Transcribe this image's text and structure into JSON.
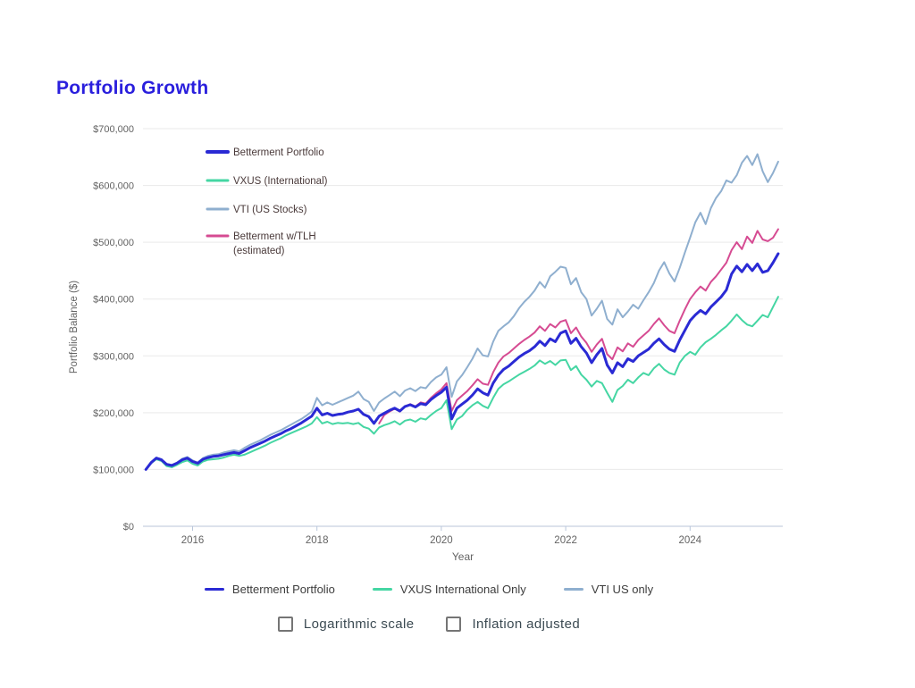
{
  "page": {
    "title": "Portfolio Growth",
    "title_color": "#2a1fdd"
  },
  "axes": {
    "y_title": "Portfolio Balance ($)",
    "x_title": "Year",
    "y_tick_labels": [
      "$0",
      "$100,000",
      "$200,000",
      "$300,000",
      "$400,000",
      "$500,000",
      "$600,000",
      "$700,000"
    ],
    "x_tick_labels": [
      "2016",
      "2018",
      "2020",
      "2022",
      "2024"
    ],
    "text_color": "#636363",
    "axis_line_color": "#b9c6da",
    "grid_color": "#e9e9e9"
  },
  "inchart_legend": {
    "text_color": "#4a3a3a",
    "items": [
      {
        "label_lines": [
          "Betterment Portfolio"
        ],
        "color": "#2a2ad4"
      },
      {
        "label_lines": [
          "VXUS (International)"
        ],
        "color": "#45d6a3"
      },
      {
        "label_lines": [
          "VTI (US Stocks)"
        ],
        "color": "#8fafcf"
      },
      {
        "label_lines": [
          "Betterment w/TLH",
          "(estimated)"
        ],
        "color": "#d64b92"
      }
    ]
  },
  "bottom_legend": {
    "items": [
      {
        "label": "Betterment Portfolio",
        "color": "#2a2ad4"
      },
      {
        "label": "VXUS International Only",
        "color": "#45d6a3"
      },
      {
        "label": "VTI US only",
        "color": "#8fafcf"
      }
    ]
  },
  "controls": {
    "checkboxes": [
      {
        "label": "Logarithmic scale",
        "checked": false
      },
      {
        "label": "Inflation adjusted",
        "checked": false
      }
    ]
  },
  "chart_data": {
    "type": "line",
    "title": "Portfolio Growth",
    "xlabel": "Year",
    "ylabel": "Portfolio Balance ($)",
    "x_unit": "decimal_year_monthly",
    "values_unit": "USD_thousands",
    "x_range": [
      2015.25,
      2025.417
    ],
    "ylim": [
      0,
      700000
    ],
    "x_ticks": [
      2016,
      2018,
      2020,
      2022,
      2024
    ],
    "y_ticks_k": [
      0,
      100,
      200,
      300,
      400,
      500,
      600,
      700
    ],
    "grid": "horizontal-only",
    "legend_position": "top-left-inset",
    "x": [
      2015.25,
      2015.333,
      2015.417,
      2015.5,
      2015.583,
      2015.667,
      2015.75,
      2015.833,
      2015.917,
      2016.0,
      2016.083,
      2016.167,
      2016.25,
      2016.333,
      2016.417,
      2016.5,
      2016.583,
      2016.667,
      2016.75,
      2016.833,
      2016.917,
      2017.0,
      2017.083,
      2017.167,
      2017.25,
      2017.333,
      2017.417,
      2017.5,
      2017.583,
      2017.667,
      2017.75,
      2017.833,
      2017.917,
      2018.0,
      2018.083,
      2018.167,
      2018.25,
      2018.333,
      2018.417,
      2018.5,
      2018.583,
      2018.667,
      2018.75,
      2018.833,
      2018.917,
      2019.0,
      2019.083,
      2019.167,
      2019.25,
      2019.333,
      2019.417,
      2019.5,
      2019.583,
      2019.667,
      2019.75,
      2019.833,
      2019.917,
      2020.0,
      2020.083,
      2020.167,
      2020.25,
      2020.333,
      2020.417,
      2020.5,
      2020.583,
      2020.667,
      2020.75,
      2020.833,
      2020.917,
      2021.0,
      2021.083,
      2021.167,
      2021.25,
      2021.333,
      2021.417,
      2021.5,
      2021.583,
      2021.667,
      2021.75,
      2021.833,
      2021.917,
      2022.0,
      2022.083,
      2022.167,
      2022.25,
      2022.333,
      2022.417,
      2022.5,
      2022.583,
      2022.667,
      2022.75,
      2022.833,
      2022.917,
      2023.0,
      2023.083,
      2023.167,
      2023.25,
      2023.333,
      2023.417,
      2023.5,
      2023.583,
      2023.667,
      2023.75,
      2023.833,
      2023.917,
      2024.0,
      2024.083,
      2024.167,
      2024.25,
      2024.333,
      2024.417,
      2024.5,
      2024.583,
      2024.667,
      2024.75,
      2024.833,
      2024.917,
      2025.0,
      2025.083,
      2025.167,
      2025.25,
      2025.333,
      2025.417
    ],
    "series": [
      {
        "name": "Betterment Portfolio",
        "color": "#2a2ad4",
        "line_width": 3,
        "values_k": [
          100,
          112,
          120,
          117,
          109,
          107,
          111,
          117,
          120,
          114,
          111,
          118,
          121,
          123,
          124,
          126,
          128,
          130,
          128,
          133,
          138,
          142,
          146,
          150,
          155,
          159,
          163,
          168,
          172,
          177,
          182,
          188,
          194,
          208,
          196,
          199,
          195,
          197,
          198,
          201,
          203,
          206,
          197,
          193,
          181,
          194,
          199,
          204,
          208,
          203,
          211,
          214,
          210,
          216,
          214,
          223,
          230,
          236,
          245,
          189,
          208,
          215,
          222,
          231,
          242,
          235,
          231,
          252,
          266,
          276,
          282,
          290,
          298,
          304,
          309,
          316,
          326,
          318,
          330,
          325,
          340,
          344,
          322,
          331,
          316,
          305,
          288,
          302,
          313,
          284,
          270,
          288,
          281,
          295,
          290,
          300,
          306,
          312,
          322,
          330,
          320,
          312,
          308,
          328,
          345,
          362,
          372,
          380,
          374,
          386,
          395,
          404,
          416,
          444,
          458,
          448,
          461,
          450,
          462,
          447,
          450,
          464,
          480
        ]
      },
      {
        "name": "VXUS (International)",
        "color": "#45d6a3",
        "line_width": 2,
        "values_k": [
          100,
          111,
          118,
          115,
          106,
          104,
          108,
          113,
          116,
          110,
          107,
          114,
          117,
          118,
          119,
          121,
          124,
          126,
          124,
          126,
          130,
          134,
          138,
          142,
          147,
          151,
          155,
          160,
          164,
          168,
          172,
          176,
          181,
          192,
          181,
          184,
          180,
          182,
          181,
          182,
          180,
          182,
          175,
          172,
          163,
          174,
          178,
          181,
          185,
          179,
          186,
          188,
          184,
          190,
          188,
          196,
          203,
          208,
          222,
          171,
          188,
          194,
          205,
          213,
          219,
          212,
          208,
          226,
          242,
          250,
          255,
          261,
          267,
          272,
          277,
          283,
          292,
          286,
          291,
          284,
          292,
          293,
          275,
          282,
          267,
          258,
          246,
          256,
          252,
          235,
          219,
          240,
          247,
          258,
          252,
          262,
          270,
          266,
          278,
          286,
          276,
          270,
          267,
          288,
          300,
          307,
          302,
          315,
          324,
          330,
          337,
          345,
          352,
          362,
          373,
          363,
          355,
          352,
          362,
          372,
          368,
          386,
          404
        ]
      },
      {
        "name": "VTI (US Stocks)",
        "color": "#8fafcf",
        "line_width": 2,
        "values_k": [
          100,
          113,
          121,
          118,
          110,
          108,
          112,
          119,
          122,
          116,
          112,
          120,
          124,
          126,
          127,
          130,
          132,
          134,
          132,
          138,
          143,
          147,
          151,
          156,
          161,
          165,
          169,
          174,
          179,
          184,
          189,
          195,
          202,
          226,
          213,
          218,
          214,
          218,
          222,
          226,
          230,
          237,
          224,
          219,
          203,
          218,
          225,
          231,
          237,
          229,
          239,
          243,
          238,
          245,
          243,
          254,
          262,
          267,
          280,
          228,
          255,
          266,
          280,
          295,
          313,
          301,
          299,
          325,
          344,
          352,
          359,
          370,
          384,
          395,
          404,
          415,
          430,
          420,
          440,
          448,
          457,
          455,
          426,
          437,
          412,
          400,
          371,
          383,
          397,
          365,
          355,
          382,
          368,
          378,
          390,
          383,
          398,
          412,
          428,
          450,
          465,
          445,
          431,
          455,
          482,
          508,
          535,
          552,
          532,
          560,
          578,
          590,
          609,
          605,
          618,
          640,
          652,
          636,
          655,
          625,
          606,
          622,
          642
        ]
      },
      {
        "name": "Betterment w/TLH (estimated)",
        "color": "#d64b92",
        "line_width": 2,
        "values_k": [
          null,
          null,
          null,
          null,
          null,
          null,
          null,
          null,
          null,
          null,
          null,
          null,
          null,
          null,
          null,
          null,
          null,
          null,
          null,
          null,
          null,
          null,
          null,
          null,
          null,
          null,
          null,
          null,
          null,
          null,
          null,
          null,
          null,
          null,
          null,
          null,
          null,
          null,
          null,
          null,
          null,
          null,
          null,
          null,
          null,
          181,
          196,
          202,
          207,
          202,
          211,
          215,
          211,
          218,
          216,
          226,
          234,
          241,
          252,
          203,
          222,
          230,
          238,
          248,
          259,
          251,
          249,
          271,
          288,
          299,
          305,
          313,
          321,
          328,
          334,
          341,
          352,
          344,
          356,
          350,
          360,
          363,
          340,
          350,
          334,
          323,
          307,
          320,
          330,
          303,
          294,
          315,
          308,
          322,
          316,
          328,
          336,
          344,
          356,
          366,
          354,
          344,
          340,
          362,
          382,
          400,
          412,
          422,
          415,
          430,
          440,
          452,
          464,
          486,
          500,
          488,
          510,
          499,
          520,
          505,
          502,
          508,
          523
        ]
      }
    ]
  }
}
